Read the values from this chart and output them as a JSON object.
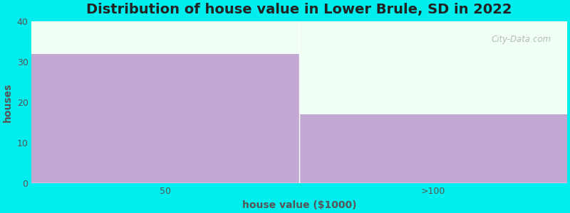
{
  "categories": [
    "50",
    ">100"
  ],
  "values": [
    32,
    17
  ],
  "bar_color": "#c4a8d4",
  "background_color": "#00eeee",
  "plot_bg_color": "#f0fff4",
  "title": "Distribution of house value in Lower Brule, SD in 2022",
  "xlabel": "house value ($1000)",
  "ylabel": "houses",
  "ylim": [
    0,
    40
  ],
  "yticks": [
    0,
    10,
    20,
    30,
    40
  ],
  "title_fontsize": 14,
  "label_fontsize": 10,
  "tick_fontsize": 9,
  "watermark": "City-Data.com",
  "bar_width": 1.0
}
